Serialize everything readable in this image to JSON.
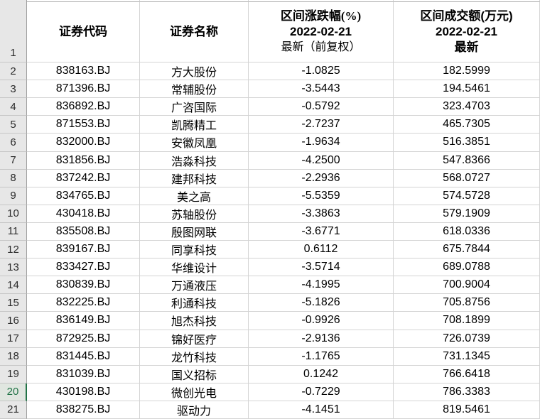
{
  "sheet": {
    "header_row_number": "1",
    "active_row_number": "20",
    "columns": {
      "code": {
        "title": "证券代码"
      },
      "name": {
        "title": "证券名称"
      },
      "pct": {
        "lines": [
          "区间涨跌幅(%)",
          "2022-02-21",
          "最新（前复权）"
        ]
      },
      "turnover": {
        "lines": [
          "区间成交额(万元)",
          "2022-02-21",
          "最新"
        ]
      }
    },
    "rows": [
      {
        "num": "2",
        "code": "838163.BJ",
        "name": "方大股份",
        "pct": "-1.0825",
        "turnover": "182.5999"
      },
      {
        "num": "3",
        "code": "871396.BJ",
        "name": "常辅股份",
        "pct": "-3.5443",
        "turnover": "194.5461"
      },
      {
        "num": "4",
        "code": "836892.BJ",
        "name": "广咨国际",
        "pct": "-0.5792",
        "turnover": "323.4703"
      },
      {
        "num": "5",
        "code": "871553.BJ",
        "name": "凯腾精工",
        "pct": "-2.7237",
        "turnover": "465.7305"
      },
      {
        "num": "6",
        "code": "832000.BJ",
        "name": "安徽凤凰",
        "pct": "-1.9634",
        "turnover": "516.3851"
      },
      {
        "num": "7",
        "code": "831856.BJ",
        "name": "浩淼科技",
        "pct": "-4.2500",
        "turnover": "547.8366"
      },
      {
        "num": "8",
        "code": "837242.BJ",
        "name": "建邦科技",
        "pct": "-2.2936",
        "turnover": "568.0727"
      },
      {
        "num": "9",
        "code": "834765.BJ",
        "name": "美之高",
        "pct": "-5.5359",
        "turnover": "574.5728"
      },
      {
        "num": "10",
        "code": "430418.BJ",
        "name": "苏轴股份",
        "pct": "-3.3863",
        "turnover": "579.1909"
      },
      {
        "num": "11",
        "code": "835508.BJ",
        "name": "殷图网联",
        "pct": "-3.6771",
        "turnover": "618.0336"
      },
      {
        "num": "12",
        "code": "839167.BJ",
        "name": "同享科技",
        "pct": "0.6112",
        "turnover": "675.7844"
      },
      {
        "num": "13",
        "code": "833427.BJ",
        "name": "华维设计",
        "pct": "-3.5714",
        "turnover": "689.0788"
      },
      {
        "num": "14",
        "code": "830839.BJ",
        "name": "万通液压",
        "pct": "-4.1995",
        "turnover": "700.9004"
      },
      {
        "num": "15",
        "code": "832225.BJ",
        "name": "利通科技",
        "pct": "-5.1826",
        "turnover": "705.8756"
      },
      {
        "num": "16",
        "code": "836149.BJ",
        "name": "旭杰科技",
        "pct": "-0.9926",
        "turnover": "708.1899"
      },
      {
        "num": "17",
        "code": "872925.BJ",
        "name": "锦好医疗",
        "pct": "-2.9136",
        "turnover": "726.0739"
      },
      {
        "num": "18",
        "code": "831445.BJ",
        "name": "龙竹科技",
        "pct": "-1.1765",
        "turnover": "731.1345"
      },
      {
        "num": "19",
        "code": "831039.BJ",
        "name": "国义招标",
        "pct": "0.1242",
        "turnover": "766.6418"
      },
      {
        "num": "20",
        "code": "430198.BJ",
        "name": "微创光电",
        "pct": "-0.7229",
        "turnover": "786.3383"
      },
      {
        "num": "21",
        "code": "838275.BJ",
        "name": "驱动力",
        "pct": "-4.1451",
        "turnover": "819.5461"
      }
    ]
  },
  "colors": {
    "active_row_green": "#217346"
  }
}
